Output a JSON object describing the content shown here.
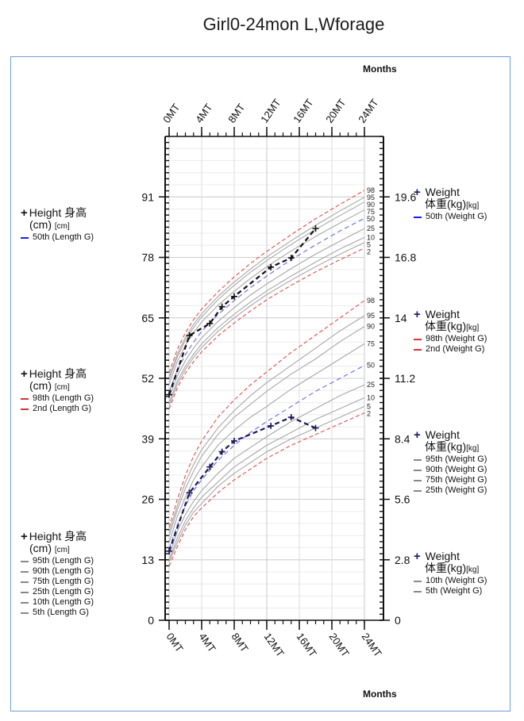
{
  "page": {
    "title": "Girl0-24mon L,Wforage",
    "months_label_top": "Months",
    "months_label_bottom": "Months"
  },
  "legends": {
    "length_50": {
      "head": "Height 身高",
      "unit_main": "(cm)",
      "unit_small": "[cm]",
      "items": [
        {
          "label": "50th (Length G)",
          "style": "blue"
        }
      ]
    },
    "length_98": {
      "head": "Height 身高",
      "unit_main": "(cm)",
      "unit_small": "[cm]",
      "items": [
        {
          "label": "98th (Length G)",
          "style": "red"
        },
        {
          "label": "2nd (Length G)",
          "style": "red"
        }
      ]
    },
    "length_rest": {
      "head": "Height 身高",
      "unit_main": "(cm)",
      "unit_small": "[cm]",
      "items": [
        {
          "label": "95th (Length G)",
          "style": "gray"
        },
        {
          "label": "90th (Length G)",
          "style": "gray"
        },
        {
          "label": "75th (Length G)",
          "style": "gray"
        },
        {
          "label": "25th (Length G)",
          "style": "gray"
        },
        {
          "label": "10th (Length G)",
          "style": "gray"
        },
        {
          "label": "5th (Length G)",
          "style": "gray"
        }
      ]
    },
    "weight_50": {
      "head": "Weight",
      "unit_main": "体重(kg)",
      "unit_small": "[kg]",
      "items": [
        {
          "label": "50th (Weight G)",
          "style": "blue"
        }
      ]
    },
    "weight_98": {
      "head": "Weight",
      "unit_main": "体重(kg)",
      "unit_small": "[kg]",
      "items": [
        {
          "label": "98th (Weight G)",
          "style": "red"
        },
        {
          "label": "2nd (Weight G)",
          "style": "red"
        }
      ]
    },
    "weight_mid": {
      "head": "Weight",
      "unit_main": "体重(kg)",
      "unit_small": "[kg]",
      "items": [
        {
          "label": "95th (Weight G)",
          "style": "gray"
        },
        {
          "label": "90th (Weight G)",
          "style": "gray"
        },
        {
          "label": "75th (Weight G)",
          "style": "gray"
        },
        {
          "label": "25th (Weight G)",
          "style": "gray"
        }
      ]
    },
    "weight_low": {
      "head": "Weight",
      "unit_main": "体重(kg)",
      "unit_small": "[kg]",
      "items": [
        {
          "label": "10th (Weight G)",
          "style": "gray"
        },
        {
          "label": "5th (Weight G)",
          "style": "gray"
        }
      ]
    }
  },
  "chart_data": {
    "type": "line",
    "title": "Girl0-24mon L,Wforage",
    "x_label": "Months",
    "x_ticks": [
      "0MT",
      "4MT",
      "8MT",
      "12MT",
      "16MT",
      "20MT",
      "24MT"
    ],
    "x_range": [
      0,
      24
    ],
    "left_axis": {
      "unit": "cm",
      "range": [
        0,
        104
      ],
      "ticks": [
        0,
        13,
        26,
        39,
        52,
        65,
        78,
        91
      ]
    },
    "right_axis": {
      "unit": "kg",
      "range": [
        0,
        22.4
      ],
      "ticks": [
        0,
        2.8,
        5.6,
        8.4,
        11.2,
        14,
        16.8,
        19.6
      ]
    },
    "length_percentile_labels": [
      "98",
      "95",
      "90",
      "75",
      "50",
      "25",
      "10",
      "5",
      "2"
    ],
    "weight_percentile_labels": [
      "98",
      "95",
      "90",
      "75",
      "50",
      "25",
      "10",
      "5",
      "2"
    ],
    "length_percentiles": {
      "x": [
        0,
        1,
        2,
        3,
        4,
        6,
        8,
        10,
        12,
        15,
        18,
        21,
        24
      ],
      "series": [
        {
          "name": "98",
          "values": [
            53.2,
            58.2,
            61.8,
            64.6,
            66.9,
            70.6,
            73.8,
            76.7,
            79.3,
            82.9,
            86.3,
            89.4,
            92.4
          ],
          "color": "#e05050",
          "dash": "5,3"
        },
        {
          "name": "95",
          "values": [
            52.3,
            57.2,
            60.8,
            63.6,
            65.9,
            69.6,
            72.7,
            75.5,
            78.1,
            81.6,
            84.9,
            88.0,
            90.9
          ],
          "color": "#a8a8a8",
          "dash": ""
        },
        {
          "name": "90",
          "values": [
            51.7,
            56.6,
            60.2,
            62.9,
            65.2,
            68.9,
            72.0,
            74.8,
            77.3,
            80.8,
            84.0,
            87.0,
            89.9
          ],
          "color": "#a8a8a8",
          "dash": ""
        },
        {
          "name": "75",
          "values": [
            50.7,
            55.6,
            59.1,
            61.8,
            64.1,
            67.7,
            70.7,
            73.5,
            76.0,
            79.4,
            82.5,
            85.4,
            88.2
          ],
          "color": "#a8a8a8",
          "dash": ""
        },
        {
          "name": "50",
          "values": [
            49.1,
            53.7,
            57.1,
            59.8,
            62.1,
            65.7,
            68.7,
            71.5,
            74.0,
            77.5,
            80.7,
            83.7,
            86.4
          ],
          "color": "#6a6aee",
          "dash": "6,4"
        },
        {
          "name": "25",
          "values": [
            47.9,
            52.5,
            55.8,
            58.5,
            60.7,
            64.2,
            67.2,
            69.9,
            72.3,
            75.6,
            78.7,
            81.5,
            84.2
          ],
          "color": "#a8a8a8",
          "dash": ""
        },
        {
          "name": "10",
          "values": [
            46.8,
            51.4,
            54.6,
            57.2,
            59.4,
            62.9,
            65.8,
            68.4,
            70.8,
            74.0,
            77.0,
            79.8,
            82.3
          ],
          "color": "#a8a8a8",
          "dash": ""
        },
        {
          "name": "5",
          "values": [
            46.2,
            50.7,
            53.9,
            56.5,
            58.6,
            62.1,
            65.0,
            67.6,
            70.0,
            73.1,
            76.0,
            78.7,
            81.2
          ],
          "color": "#a8a8a8",
          "dash": ""
        },
        {
          "name": "2",
          "values": [
            45.4,
            49.9,
            53.1,
            55.6,
            57.7,
            61.1,
            63.9,
            66.5,
            68.9,
            72.0,
            74.9,
            77.5,
            80.0
          ],
          "color": "#e05050",
          "dash": "5,3"
        }
      ]
    },
    "weight_percentiles": {
      "x": [
        0,
        1,
        2,
        3,
        4,
        6,
        8,
        10,
        12,
        15,
        18,
        21,
        24
      ],
      "series": [
        {
          "name": "98",
          "values": [
            4.3,
            5.6,
            6.7,
            7.6,
            8.3,
            9.4,
            10.2,
            10.9,
            11.5,
            12.4,
            13.2,
            14.0,
            14.8
          ],
          "color": "#e05050",
          "dash": "5,3"
        },
        {
          "name": "95",
          "values": [
            4.1,
            5.3,
            6.4,
            7.2,
            7.9,
            8.9,
            9.7,
            10.4,
            11.0,
            11.8,
            12.6,
            13.4,
            14.1
          ],
          "color": "#a8a8a8",
          "dash": ""
        },
        {
          "name": "90",
          "values": [
            3.9,
            5.1,
            6.1,
            6.9,
            7.6,
            8.6,
            9.4,
            10.0,
            10.6,
            11.4,
            12.1,
            12.9,
            13.6
          ],
          "color": "#a8a8a8",
          "dash": ""
        },
        {
          "name": "75",
          "values": [
            3.6,
            4.8,
            5.7,
            6.5,
            7.1,
            8.1,
            8.8,
            9.4,
            9.9,
            10.7,
            11.4,
            12.1,
            12.8
          ],
          "color": "#a8a8a8",
          "dash": ""
        },
        {
          "name": "50",
          "values": [
            3.3,
            4.4,
            5.3,
            6.0,
            6.5,
            7.4,
            8.1,
            8.7,
            9.2,
            9.9,
            10.6,
            11.2,
            11.8
          ],
          "color": "#6a6aee",
          "dash": "6,4"
        },
        {
          "name": "25",
          "values": [
            3.0,
            4.1,
            4.9,
            5.5,
            6.0,
            6.8,
            7.5,
            8.0,
            8.5,
            9.2,
            9.8,
            10.4,
            10.9
          ],
          "color": "#a8a8a8",
          "dash": ""
        },
        {
          "name": "10",
          "values": [
            2.8,
            3.8,
            4.6,
            5.2,
            5.7,
            6.4,
            7.1,
            7.6,
            8.1,
            8.7,
            9.3,
            9.8,
            10.3
          ],
          "color": "#a8a8a8",
          "dash": ""
        },
        {
          "name": "5",
          "values": [
            2.7,
            3.6,
            4.4,
            5.0,
            5.4,
            6.2,
            6.8,
            7.3,
            7.8,
            8.4,
            8.9,
            9.4,
            9.9
          ],
          "color": "#a8a8a8",
          "dash": ""
        },
        {
          "name": "2",
          "values": [
            2.5,
            3.4,
            4.2,
            4.8,
            5.2,
            5.9,
            6.5,
            7.0,
            7.5,
            8.1,
            8.6,
            9.1,
            9.6
          ],
          "color": "#e05050",
          "dash": "5,3"
        }
      ]
    },
    "measured_length": {
      "x": [
        0,
        2.5,
        5,
        6.5,
        8,
        12.5,
        15,
        18
      ],
      "values": [
        48.5,
        61.2,
        63.8,
        67.4,
        69.6,
        75.9,
        77.9,
        84.2
      ]
    },
    "measured_weight": {
      "x": [
        0,
        2.5,
        5,
        6.5,
        8,
        12.5,
        15,
        18
      ],
      "values": [
        3.2,
        5.9,
        7.1,
        7.8,
        8.3,
        9.0,
        9.4,
        8.9
      ]
    }
  }
}
